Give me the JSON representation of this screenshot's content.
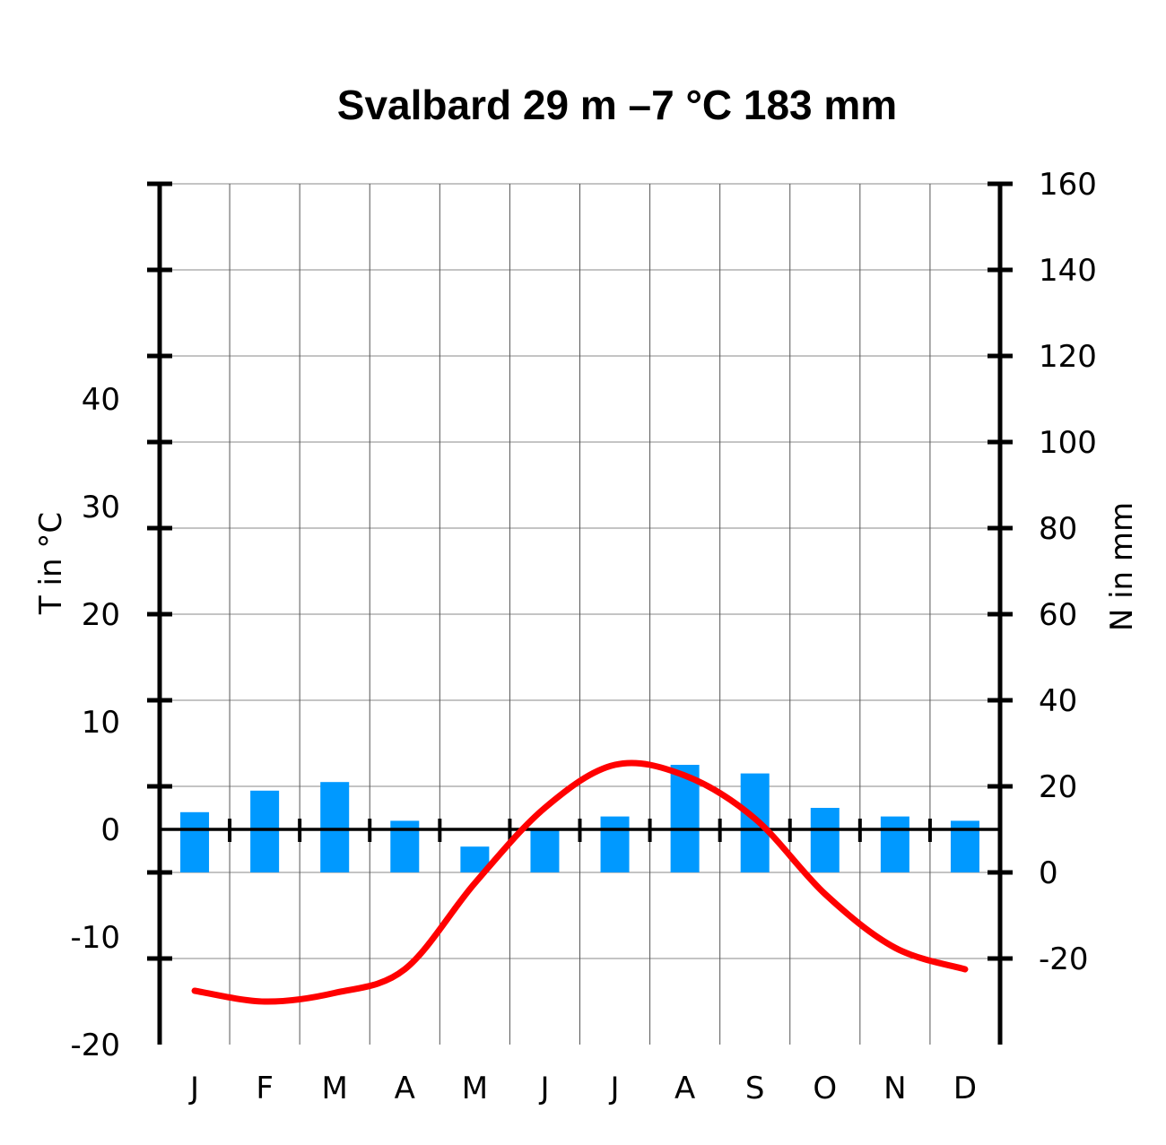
{
  "chart_data": {
    "type": "bar",
    "title": "Svalbard  29 m  –7 °C  183 mm",
    "categories": [
      "J",
      "F",
      "M",
      "A",
      "M",
      "J",
      "J",
      "A",
      "S",
      "O",
      "N",
      "D"
    ],
    "series": [
      {
        "name": "",
        "type": "bar",
        "axis": "right",
        "color": "#0099ff",
        "values": [
          14,
          19,
          21,
          12,
          6,
          10,
          13,
          25,
          23,
          15,
          13,
          12
        ]
      },
      {
        "name": "",
        "type": "line",
        "axis": "left",
        "color": "#ff0000",
        "values": [
          -15,
          -16,
          -15.2,
          -13,
          -5,
          2,
          6,
          5,
          1,
          -6,
          -11,
          -13
        ]
      }
    ],
    "left_axis": {
      "label": "T in °C",
      "ticks": [
        40,
        30,
        20,
        10,
        0,
        -10,
        -20
      ],
      "ylim": [
        -20,
        60
      ]
    },
    "right_axis": {
      "label": "N in mm",
      "ticks": [
        160,
        140,
        120,
        100,
        80,
        60,
        40,
        20,
        0,
        -20
      ],
      "ylim": [
        -40,
        160
      ]
    },
    "grid": true
  }
}
